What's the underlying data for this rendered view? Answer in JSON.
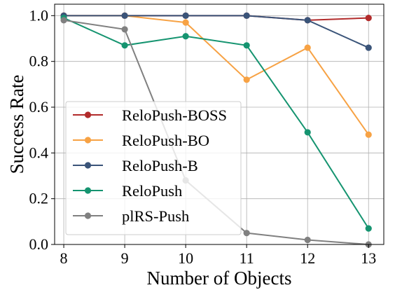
{
  "chart_data": {
    "type": "line",
    "title": "",
    "xlabel": "Number of Objects",
    "ylabel": "Success Rate",
    "x": [
      8,
      9,
      10,
      11,
      12,
      13
    ],
    "xticks": [
      "8",
      "9",
      "10",
      "11",
      "12",
      "13"
    ],
    "xlim": [
      7.85,
      13.25
    ],
    "yticks": [
      "0.0",
      "0.2",
      "0.4",
      "0.6",
      "0.8",
      "1.0"
    ],
    "ylim": [
      0.0,
      1.05
    ],
    "grid": true,
    "legend_position": "lower-left",
    "series": [
      {
        "name": "ReloPush-BOSS",
        "color": "#b22b2b",
        "values": [
          1.0,
          1.0,
          1.0,
          1.0,
          0.98,
          0.99
        ]
      },
      {
        "name": "ReloPush-BO",
        "color": "#f7a244",
        "values": [
          1.0,
          1.0,
          0.97,
          0.72,
          0.86,
          0.48
        ]
      },
      {
        "name": "ReloPush-B",
        "color": "#3a5479",
        "values": [
          1.0,
          1.0,
          1.0,
          1.0,
          0.98,
          0.86
        ]
      },
      {
        "name": "ReloPush",
        "color": "#159470",
        "values": [
          0.99,
          0.87,
          0.91,
          0.87,
          0.49,
          0.07
        ]
      },
      {
        "name": "plRS-Push",
        "color": "#808080",
        "values": [
          0.98,
          0.94,
          0.28,
          0.05,
          0.02,
          0.0
        ]
      }
    ]
  }
}
